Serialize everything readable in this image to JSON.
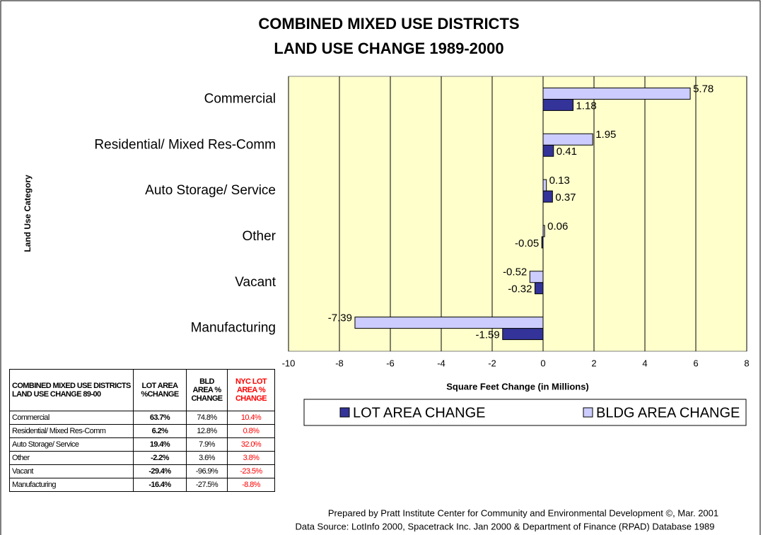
{
  "chart_data": {
    "type": "hbar",
    "title": [
      "COMBINED MIXED USE DISTRICTS",
      "LAND USE CHANGE 1989-2000"
    ],
    "xlabel": "Square Feet Change (in Millions)",
    "ylabel": "Land Use Category",
    "categories": [
      "Commercial",
      "Residential/ Mixed Res-Comm",
      "Auto Storage/ Service",
      "Other",
      "Vacant",
      "Manufacturing"
    ],
    "series": [
      {
        "name": "LOT AREA CHANGE",
        "color": "#333399",
        "values": [
          1.18,
          0.41,
          0.37,
          -0.05,
          -0.32,
          -1.59
        ]
      },
      {
        "name": "BLDG AREA CHANGE",
        "color": "#ccccff",
        "values": [
          5.78,
          1.95,
          0.13,
          0.06,
          -0.52,
          -7.39
        ]
      }
    ],
    "xlim": [
      -10,
      8
    ],
    "xticks": [
      -10,
      -8,
      -6,
      -4,
      -2,
      0,
      2,
      4,
      6,
      8
    ],
    "grid": true,
    "plot_background": "#ffffcc"
  },
  "table": {
    "header": [
      "COMBINED MIXED USE DISTRICTS LAND USE CHANGE 89-00",
      "LOT AREA %CHANGE",
      "BLD AREA % CHANGE",
      "NYC LOT AREA % CHANGE"
    ],
    "rows": [
      [
        "Commercial",
        "63.7%",
        "74.8%",
        "10.4%"
      ],
      [
        "Residential/ Mixed Res-Comm",
        "6.2%",
        "12.8%",
        "0.8%"
      ],
      [
        "Auto Storage/ Service",
        "19.4%",
        "7.9%",
        "32.0%"
      ],
      [
        "Other",
        "-2.2%",
        "3.6%",
        "3.8%"
      ],
      [
        "Vacant",
        "-29.4%",
        "-96.9%",
        "-23.5%"
      ],
      [
        "Manufacturing",
        "-16.4%",
        "-27.5%",
        "-8.8%"
      ]
    ]
  },
  "footer": [
    "Prepared by Pratt Institute Center for Community and Environmental Development ©, Mar. 2001",
    "Data Source:  LotInfo 2000, Spacetrack Inc. Jan 2000 &  Department of Finance (RPAD) Database 1989"
  ]
}
